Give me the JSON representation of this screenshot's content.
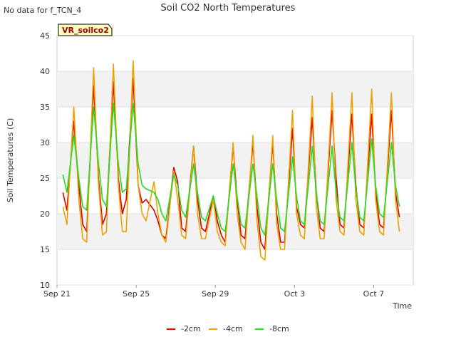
{
  "corner_note": "No data for f_TCN_4",
  "badge_label": "VR_soilco2",
  "chart_data": {
    "type": "line",
    "title": "Soil CO2 North Temperatures",
    "xlabel": "Time",
    "ylabel": "Soil Temperatures (C)",
    "xlim": [
      0,
      18
    ],
    "ylim": [
      10,
      45
    ],
    "y_ticks": [
      10,
      15,
      20,
      25,
      30,
      35,
      40,
      45
    ],
    "x_ticks": [
      {
        "value": 0,
        "label": "Sep 21"
      },
      {
        "value": 4,
        "label": "Sep 25"
      },
      {
        "value": 8,
        "label": "Sep 29"
      },
      {
        "value": 12,
        "label": "Oct 3"
      },
      {
        "value": 16,
        "label": "Oct 7"
      }
    ],
    "grid": true,
    "legend_position": "bottom",
    "series": [
      {
        "name": "-2cm",
        "color": "#dd0000",
        "x": [
          0.3,
          0.5,
          0.85,
          1.1,
          1.3,
          1.5,
          1.85,
          2.1,
          2.3,
          2.5,
          2.85,
          3.1,
          3.3,
          3.5,
          3.85,
          4.1,
          4.3,
          4.5,
          4.9,
          5.1,
          5.3,
          5.5,
          5.9,
          6.1,
          6.3,
          6.5,
          6.9,
          7.1,
          7.3,
          7.5,
          7.9,
          8.1,
          8.3,
          8.5,
          8.9,
          9.1,
          9.3,
          9.5,
          9.9,
          10.1,
          10.3,
          10.5,
          10.9,
          11.1,
          11.3,
          11.5,
          11.9,
          12.1,
          12.3,
          12.5,
          12.9,
          13.1,
          13.3,
          13.5,
          13.9,
          14.1,
          14.3,
          14.5,
          14.9,
          15.1,
          15.3,
          15.5,
          15.9,
          16.1,
          16.3,
          16.5,
          16.9,
          17.1,
          17.3
        ],
        "y": [
          23,
          20.5,
          33,
          24,
          18.5,
          17.5,
          38,
          25,
          18.5,
          20,
          38.5,
          25,
          20,
          22,
          39,
          24,
          21.5,
          22,
          20.5,
          19,
          17,
          16.5,
          26.5,
          24.5,
          18,
          17.5,
          29.5,
          22,
          18,
          17.5,
          22.5,
          19,
          17,
          16,
          29.5,
          22,
          17,
          16.5,
          30,
          21,
          16,
          15,
          30,
          20,
          16,
          16,
          32,
          21,
          18.5,
          18,
          33.5,
          23,
          18,
          17.5,
          34.5,
          25,
          18.5,
          18,
          34,
          24,
          18.5,
          18,
          34,
          23,
          18.5,
          18,
          34.5,
          23,
          19.5
        ]
      },
      {
        "name": "-4cm",
        "color": "#f0a000",
        "x": [
          0.3,
          0.5,
          0.85,
          1.1,
          1.3,
          1.5,
          1.85,
          2.1,
          2.3,
          2.5,
          2.85,
          3.1,
          3.3,
          3.5,
          3.85,
          4.1,
          4.3,
          4.5,
          4.9,
          5.1,
          5.3,
          5.5,
          5.9,
          6.1,
          6.3,
          6.5,
          6.9,
          7.1,
          7.3,
          7.5,
          7.9,
          8.1,
          8.3,
          8.5,
          8.9,
          9.1,
          9.3,
          9.5,
          9.9,
          10.1,
          10.3,
          10.5,
          10.9,
          11.1,
          11.3,
          11.5,
          11.9,
          12.1,
          12.3,
          12.5,
          12.9,
          13.1,
          13.3,
          13.5,
          13.9,
          14.1,
          14.3,
          14.5,
          14.9,
          15.1,
          15.3,
          15.5,
          15.9,
          16.1,
          16.3,
          16.5,
          16.9,
          17.1,
          17.3
        ],
        "y": [
          21,
          18.5,
          35,
          22,
          16.5,
          16,
          40.5,
          24,
          17,
          17.5,
          41,
          24,
          17.5,
          17.5,
          41.5,
          24,
          20,
          19,
          24.5,
          20,
          17,
          16,
          26,
          22,
          17,
          16.5,
          29.5,
          20,
          16.5,
          16.5,
          22,
          17.5,
          16,
          15.5,
          30,
          20,
          16,
          15,
          31,
          19,
          14,
          13.5,
          31,
          18.5,
          15,
          15,
          34.5,
          20,
          17,
          16.5,
          36.5,
          21,
          16.5,
          16.5,
          37,
          22,
          17.5,
          17,
          37,
          22,
          17.5,
          17,
          37.5,
          22,
          17.5,
          17,
          37,
          22,
          17.5
        ]
      },
      {
        "name": "-8cm",
        "color": "#22dd22",
        "x": [
          0.3,
          0.5,
          0.85,
          1.1,
          1.3,
          1.5,
          1.85,
          2.1,
          2.3,
          2.5,
          2.85,
          3.1,
          3.3,
          3.5,
          3.85,
          4.1,
          4.3,
          4.5,
          4.9,
          5.1,
          5.3,
          5.5,
          5.9,
          6.1,
          6.3,
          6.5,
          6.9,
          7.1,
          7.3,
          7.5,
          7.9,
          8.1,
          8.3,
          8.5,
          8.9,
          9.1,
          9.3,
          9.5,
          9.9,
          10.1,
          10.3,
          10.5,
          10.9,
          11.1,
          11.3,
          11.5,
          11.9,
          12.1,
          12.3,
          12.5,
          12.9,
          13.1,
          13.3,
          13.5,
          13.9,
          14.1,
          14.3,
          14.5,
          14.9,
          15.1,
          15.3,
          15.5,
          15.9,
          16.1,
          16.3,
          16.5,
          16.9,
          17.1,
          17.3
        ],
        "y": [
          25.5,
          23,
          31,
          25,
          21,
          20.5,
          35,
          27,
          22,
          21,
          35.5,
          27,
          23,
          23.5,
          35.5,
          27,
          24,
          23.5,
          23,
          22,
          20,
          19,
          25.5,
          24,
          20.5,
          19.5,
          27,
          23,
          19.5,
          19,
          22.5,
          20,
          18,
          17.5,
          27,
          22.5,
          18.5,
          18,
          27,
          22.5,
          18,
          17,
          27,
          22,
          18,
          17.5,
          28,
          22.5,
          19,
          18.5,
          29.5,
          23,
          19,
          18.5,
          29.5,
          23,
          19.5,
          19,
          30,
          23.5,
          19.5,
          19,
          30.5,
          24,
          20,
          19.5,
          30,
          24,
          21
        ]
      }
    ]
  }
}
